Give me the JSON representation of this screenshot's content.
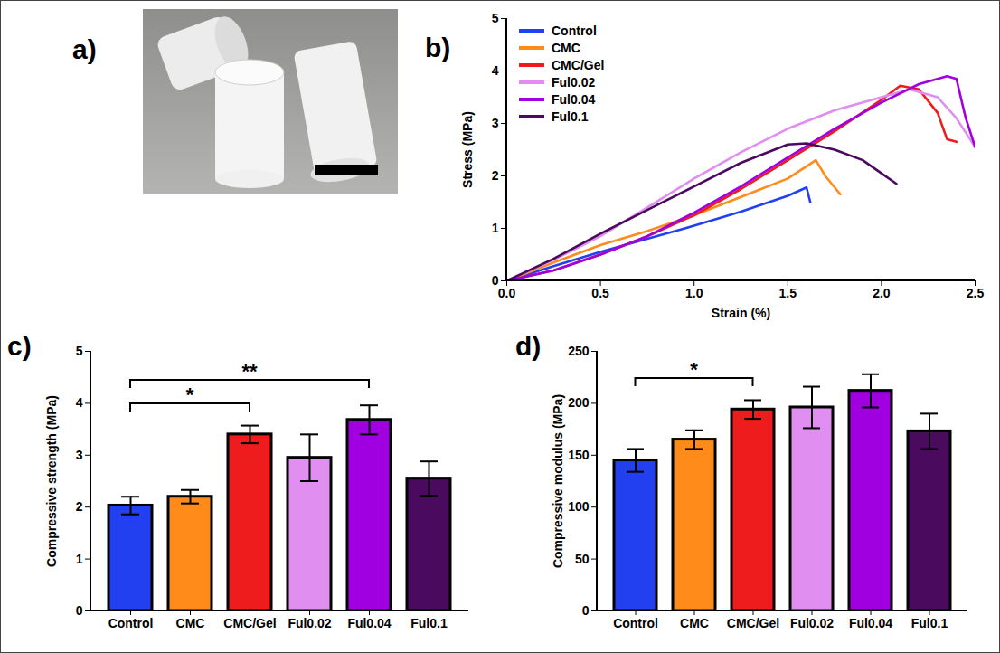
{
  "image_panel": {
    "panel": "a)"
  },
  "chart_data": [
    {
      "panel": "b)",
      "type": "line",
      "xlabel": "Strain (%)",
      "ylabel": "Stress (MPa)",
      "xlim": [
        0,
        2.5
      ],
      "ylim": [
        0,
        5
      ],
      "xticks": [
        {
          "value": 0,
          "label": "0.0"
        },
        {
          "value": 0.5,
          "label": "0.5"
        },
        {
          "value": 1,
          "label": "1.0"
        },
        {
          "value": 1.5,
          "label": "1.5"
        },
        {
          "value": 2,
          "label": "2.0"
        },
        {
          "value": 2.5,
          "label": "2.5"
        }
      ],
      "yticks": [
        0,
        1,
        2,
        3,
        4,
        5
      ],
      "legend": "top-left",
      "series": [
        {
          "name": "Control",
          "color": "#2340f0",
          "x": [
            0,
            0.25,
            0.5,
            0.75,
            1.0,
            1.25,
            1.5,
            1.6,
            1.62
          ],
          "values": [
            0,
            0.28,
            0.55,
            0.8,
            1.05,
            1.32,
            1.62,
            1.78,
            1.5
          ]
        },
        {
          "name": "CMC",
          "color": "#ff8c1a",
          "x": [
            0,
            0.25,
            0.5,
            0.75,
            1.0,
            1.25,
            1.5,
            1.65,
            1.7,
            1.78
          ],
          "values": [
            0,
            0.35,
            0.68,
            0.95,
            1.25,
            1.6,
            1.95,
            2.3,
            2.0,
            1.65
          ]
        },
        {
          "name": "CMC/Gel",
          "color": "#ee1c1c",
          "x": [
            0,
            0.25,
            0.5,
            0.75,
            1.0,
            1.25,
            1.5,
            1.75,
            2.0,
            2.1,
            2.2,
            2.3,
            2.35,
            2.4
          ],
          "values": [
            0,
            0.2,
            0.5,
            0.85,
            1.25,
            1.75,
            2.3,
            2.85,
            3.45,
            3.72,
            3.65,
            3.2,
            2.7,
            2.65
          ]
        },
        {
          "name": "Ful0.02",
          "color": "#e08ef0",
          "x": [
            0,
            0.25,
            0.5,
            0.75,
            1.0,
            1.25,
            1.5,
            1.75,
            2.0,
            2.15,
            2.3,
            2.4,
            2.5
          ],
          "values": [
            0,
            0.4,
            0.85,
            1.4,
            1.95,
            2.45,
            2.9,
            3.25,
            3.5,
            3.65,
            3.5,
            3.1,
            2.55
          ]
        },
        {
          "name": "Ful0.04",
          "color": "#a000e0",
          "x": [
            0,
            0.25,
            0.5,
            0.75,
            1.0,
            1.25,
            1.5,
            1.75,
            2.0,
            2.2,
            2.35,
            2.4,
            2.45,
            2.5
          ],
          "values": [
            0,
            0.2,
            0.5,
            0.85,
            1.3,
            1.8,
            2.35,
            2.9,
            3.4,
            3.75,
            3.9,
            3.85,
            3.1,
            2.55
          ]
        },
        {
          "name": "Ful0.1",
          "color": "#4a0a5e",
          "x": [
            0,
            0.25,
            0.5,
            0.75,
            1.0,
            1.25,
            1.5,
            1.6,
            1.75,
            1.9,
            2.0,
            2.08
          ],
          "values": [
            0,
            0.42,
            0.9,
            1.35,
            1.8,
            2.25,
            2.6,
            2.62,
            2.5,
            2.3,
            2.05,
            1.85
          ]
        }
      ]
    },
    {
      "panel": "c)",
      "type": "bar",
      "ylabel": "Compressive strength (MPa)",
      "categories": [
        "Control",
        "CMC",
        "CMC/Gel",
        "Ful0.02",
        "Ful0.04",
        "Ful0.1"
      ],
      "values": [
        2.03,
        2.2,
        3.4,
        2.95,
        3.68,
        2.55
      ],
      "errors": [
        0.17,
        0.13,
        0.17,
        0.45,
        0.28,
        0.33
      ],
      "colors": [
        "#2340f0",
        "#ff8c1a",
        "#ee1c1c",
        "#e08ef0",
        "#a000e0",
        "#4a0a5e"
      ],
      "ylim": [
        0,
        5
      ],
      "yticks": [
        0,
        1,
        2,
        3,
        4,
        5
      ],
      "significance": [
        {
          "from": "Control",
          "to": "CMC/Gel",
          "label": "*"
        },
        {
          "from": "Control",
          "to": "Ful0.04",
          "label": "**"
        }
      ]
    },
    {
      "panel": "d)",
      "type": "bar",
      "ylabel": "Compressive modulus (MPa)",
      "categories": [
        "Control",
        "CMC",
        "CMC/Gel",
        "Ful0.02",
        "Ful0.04",
        "Ful0.1"
      ],
      "values": [
        145,
        165,
        194,
        196,
        212,
        173
      ],
      "errors": [
        11,
        9,
        9,
        20,
        16,
        17
      ],
      "colors": [
        "#2340f0",
        "#ff8c1a",
        "#ee1c1c",
        "#e08ef0",
        "#a000e0",
        "#4a0a5e"
      ],
      "ylim": [
        0,
        250
      ],
      "yticks": [
        0,
        50,
        100,
        150,
        200,
        250
      ],
      "significance": [
        {
          "from": "Control",
          "to": "CMC/Gel",
          "label": "*"
        }
      ]
    }
  ]
}
